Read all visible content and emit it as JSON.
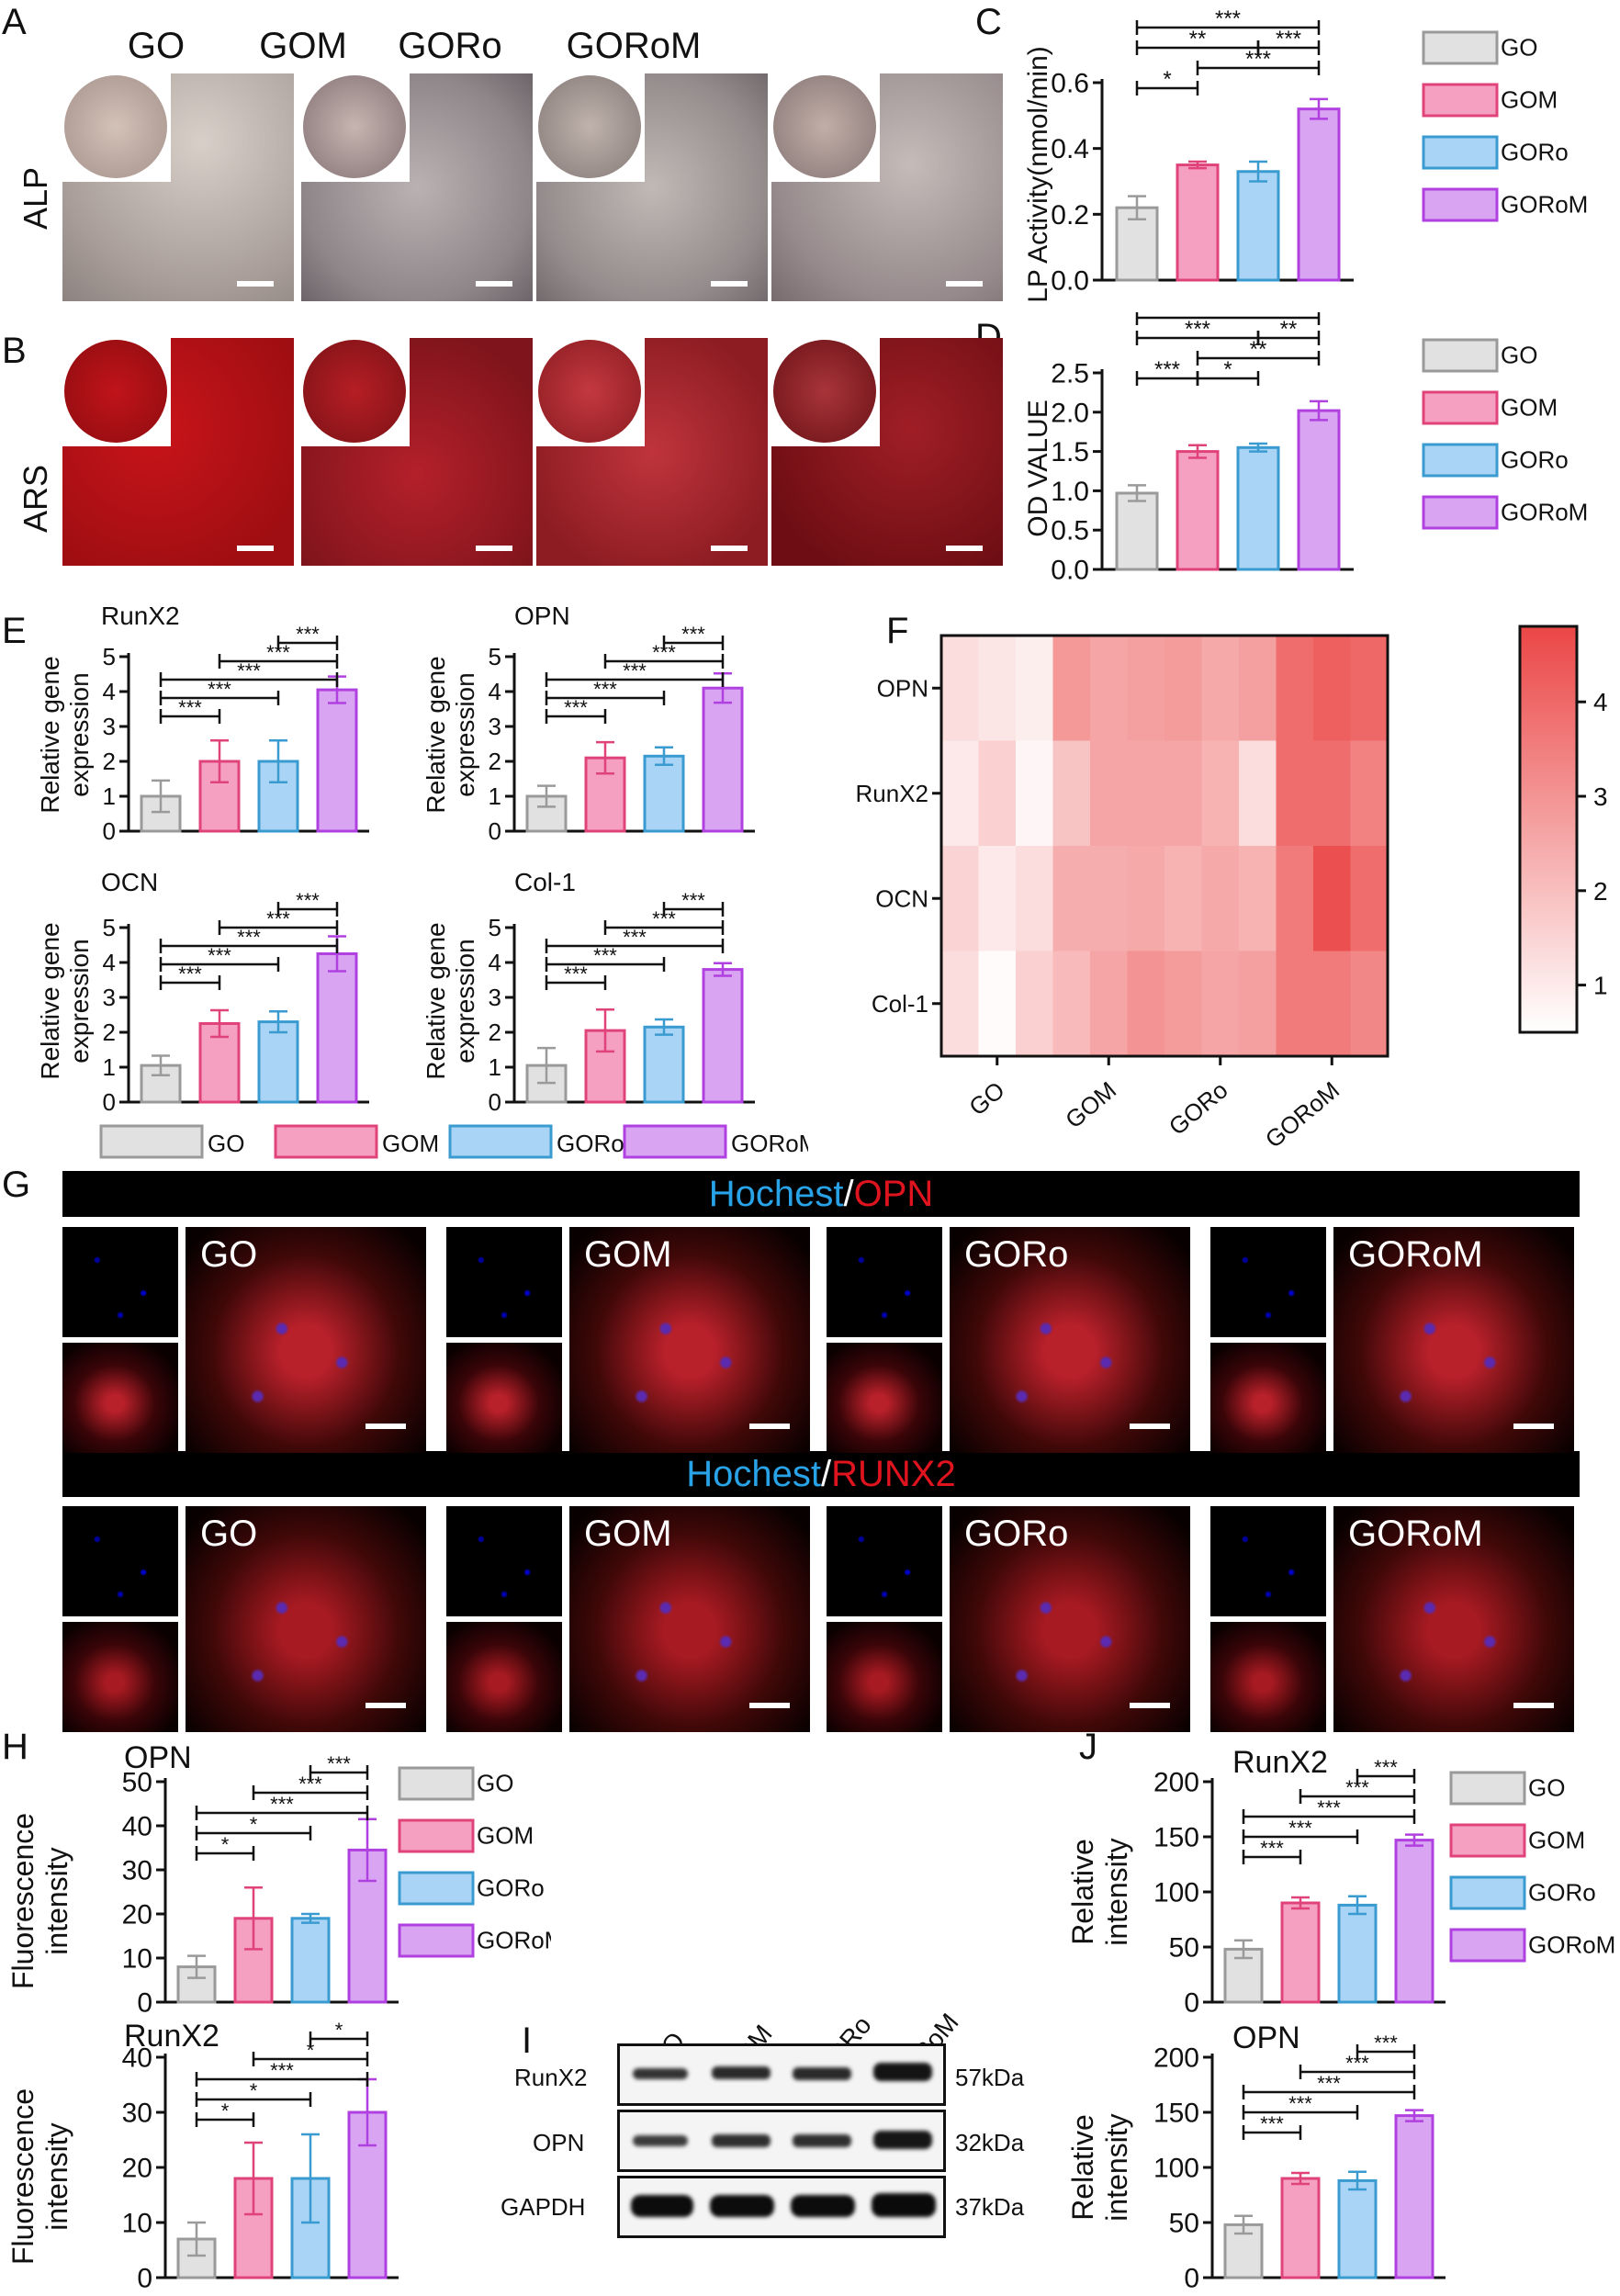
{
  "panel_labels": {
    "A": "A",
    "B": "B",
    "C": "C",
    "D": "D",
    "E": "E",
    "F": "F",
    "G": "G",
    "H": "H",
    "I": "I",
    "J": "J"
  },
  "groups": [
    "GO",
    "GOM",
    "GORo",
    "GORoM"
  ],
  "row_labels": {
    "alp": "ALP",
    "ars": "ARS"
  },
  "colors": {
    "GO": "#e1e1e1",
    "GOM": "#f5a0c0",
    "GORo": "#a9d4f5",
    "GORoM": "#d9a5f2",
    "GO_edge": "#9a9a9a",
    "GOM_edge": "#e0437a",
    "GORo_edge": "#3a9bd1",
    "GORoM_edge": "#b040e0"
  },
  "banners": {
    "opn": {
      "part1": "Hochest",
      "slash": "/",
      "part2": "OPN"
    },
    "runx2": {
      "part1": "Hochest",
      "slash": "/",
      "part2": "RUNX2"
    }
  },
  "western_blot": {
    "lanes": [
      "GO",
      "GOM",
      "GORo",
      "GORoM"
    ],
    "bands": [
      {
        "name": "RunX2",
        "size": "57kDa"
      },
      {
        "name": "OPN",
        "size": "32kDa"
      },
      {
        "name": "GAPDH",
        "size": "37kDa"
      }
    ]
  },
  "chart_data": [
    {
      "id": "C",
      "type": "bar",
      "categories": [
        "GO",
        "GOM",
        "GORo",
        "GORoM"
      ],
      "values": [
        0.22,
        0.35,
        0.33,
        0.52
      ],
      "errors": [
        0.035,
        0.01,
        0.03,
        0.03
      ],
      "title": "",
      "ylabel": "ALP Activity(nmol/min)",
      "ylim": [
        0,
        0.6
      ],
      "yticks": [
        0.0,
        0.2,
        0.4,
        0.6
      ],
      "legend": [
        "GO",
        "GOM",
        "GORo",
        "GORoM"
      ],
      "significance": [
        {
          "from": 0,
          "to": 3,
          "label": "***"
        },
        {
          "from": 0,
          "to": 2,
          "label": "**"
        },
        {
          "from": 2,
          "to": 3,
          "label": "***"
        },
        {
          "from": 0,
          "to": 1,
          "label": "*"
        },
        {
          "from": 1,
          "to": 3,
          "label": "***"
        }
      ]
    },
    {
      "id": "D",
      "type": "bar",
      "categories": [
        "GO",
        "GOM",
        "GORo",
        "GORoM"
      ],
      "values": [
        0.97,
        1.5,
        1.55,
        2.02
      ],
      "errors": [
        0.1,
        0.08,
        0.05,
        0.12
      ],
      "title": "",
      "ylabel": "OD VALUE",
      "ylim": [
        0,
        2.5
      ],
      "yticks": [
        0.0,
        0.5,
        1.0,
        1.5,
        2.0,
        2.5
      ],
      "legend": [
        "GO",
        "GOM",
        "GORo",
        "GORoM"
      ],
      "significance": [
        {
          "from": 0,
          "to": 3,
          "label": "**"
        },
        {
          "from": 0,
          "to": 2,
          "label": "***"
        },
        {
          "from": 2,
          "to": 3,
          "label": "**"
        },
        {
          "from": 0,
          "to": 1,
          "label": "***"
        },
        {
          "from": 1,
          "to": 2,
          "label": "*"
        },
        {
          "from": 1,
          "to": 3,
          "label": "**"
        }
      ]
    },
    {
      "id": "E1",
      "type": "bar",
      "categories": [
        "GO",
        "GOM",
        "GORo",
        "GORoM"
      ],
      "values": [
        1.0,
        2.0,
        2.0,
        4.05
      ],
      "errors": [
        0.45,
        0.6,
        0.6,
        0.38
      ],
      "title": "RunX2",
      "ylabel": "Relative gene expression",
      "ylim": [
        0,
        5
      ],
      "yticks": [
        0,
        1,
        2,
        3,
        4,
        5
      ],
      "significance": [
        {
          "from": 2,
          "to": 3,
          "label": "***"
        },
        {
          "from": 1,
          "to": 3,
          "label": "***"
        },
        {
          "from": 0,
          "to": 3,
          "label": "***"
        },
        {
          "from": 0,
          "to": 2,
          "label": "***"
        },
        {
          "from": 0,
          "to": 1,
          "label": "***"
        }
      ]
    },
    {
      "id": "E2",
      "type": "bar",
      "categories": [
        "GO",
        "GOM",
        "GORo",
        "GORoM"
      ],
      "values": [
        1.0,
        2.1,
        2.15,
        4.1
      ],
      "errors": [
        0.3,
        0.45,
        0.25,
        0.42
      ],
      "title": "OPN",
      "ylabel": "Relative gene expression",
      "ylim": [
        0,
        5
      ],
      "yticks": [
        0,
        1,
        2,
        3,
        4,
        5
      ],
      "significance": [
        {
          "from": 2,
          "to": 3,
          "label": "***"
        },
        {
          "from": 1,
          "to": 3,
          "label": "***"
        },
        {
          "from": 0,
          "to": 3,
          "label": "***"
        },
        {
          "from": 0,
          "to": 2,
          "label": "***"
        },
        {
          "from": 0,
          "to": 1,
          "label": "***"
        }
      ]
    },
    {
      "id": "E3",
      "type": "bar",
      "categories": [
        "GO",
        "GOM",
        "GORo",
        "GORoM"
      ],
      "values": [
        1.05,
        2.25,
        2.3,
        4.25
      ],
      "errors": [
        0.28,
        0.38,
        0.3,
        0.5
      ],
      "title": "OCN",
      "ylabel": "Relative gene expression",
      "ylim": [
        0,
        5
      ],
      "yticks": [
        0,
        1,
        2,
        3,
        4,
        5
      ],
      "significance": [
        {
          "from": 2,
          "to": 3,
          "label": "***"
        },
        {
          "from": 1,
          "to": 3,
          "label": "***"
        },
        {
          "from": 0,
          "to": 3,
          "label": "***"
        },
        {
          "from": 0,
          "to": 2,
          "label": "***"
        },
        {
          "from": 0,
          "to": 1,
          "label": "***"
        }
      ]
    },
    {
      "id": "E4",
      "type": "bar",
      "categories": [
        "GO",
        "GOM",
        "GORo",
        "GORoM"
      ],
      "values": [
        1.05,
        2.05,
        2.15,
        3.8
      ],
      "errors": [
        0.5,
        0.6,
        0.22,
        0.18
      ],
      "title": "Col-1",
      "ylabel": "Relative gene expression",
      "ylim": [
        0,
        5
      ],
      "yticks": [
        0,
        1,
        2,
        3,
        4,
        5
      ],
      "legend": [
        "GO",
        "GOM",
        "GORo",
        "GORoM"
      ],
      "significance": [
        {
          "from": 2,
          "to": 3,
          "label": "***"
        },
        {
          "from": 1,
          "to": 3,
          "label": "***"
        },
        {
          "from": 0,
          "to": 3,
          "label": "***"
        },
        {
          "from": 0,
          "to": 2,
          "label": "***"
        },
        {
          "from": 0,
          "to": 1,
          "label": "***"
        }
      ]
    },
    {
      "id": "F",
      "type": "heatmap",
      "rows": [
        "OPN",
        "RunX2",
        "OCN",
        "Col-1"
      ],
      "columns": [
        "GO",
        "GOM",
        "GORo",
        "GORoM"
      ],
      "values": [
        [
          1.3,
          1.1,
          0.9,
          2.9,
          2.6,
          2.7,
          2.8,
          2.5,
          2.7,
          3.9,
          4.2,
          4.0
        ],
        [
          1.0,
          1.6,
          0.7,
          1.9,
          2.6,
          2.6,
          2.6,
          2.3,
          1.3,
          3.9,
          3.9,
          3.4
        ],
        [
          1.5,
          1.0,
          1.3,
          2.4,
          2.4,
          2.5,
          2.3,
          2.5,
          2.3,
          3.6,
          4.6,
          3.9
        ],
        [
          1.3,
          0.6,
          1.6,
          2.1,
          2.6,
          3.0,
          2.8,
          2.6,
          2.7,
          3.6,
          3.6,
          3.3
        ]
      ],
      "colorbar_ticks": [
        1,
        2,
        3,
        4
      ],
      "vmin": 0.5,
      "vmax": 4.8
    },
    {
      "id": "H1",
      "type": "bar",
      "categories": [
        "GO",
        "GOM",
        "GORo",
        "GORoM"
      ],
      "values": [
        8,
        19,
        19,
        34.5
      ],
      "errors": [
        2.5,
        7,
        1,
        7
      ],
      "title": "OPN",
      "ylabel": "Fluorescence intensity",
      "ylim": [
        0,
        50
      ],
      "yticks": [
        0,
        10,
        20,
        30,
        40,
        50
      ],
      "legend": [
        "GO",
        "GOM",
        "GORo",
        "GORoM"
      ],
      "significance": [
        {
          "from": 2,
          "to": 3,
          "label": "***"
        },
        {
          "from": 1,
          "to": 3,
          "label": "***"
        },
        {
          "from": 0,
          "to": 3,
          "label": "***"
        },
        {
          "from": 0,
          "to": 2,
          "label": "*"
        },
        {
          "from": 0,
          "to": 1,
          "label": "*"
        }
      ]
    },
    {
      "id": "H2",
      "type": "bar",
      "categories": [
        "GO",
        "GOM",
        "GORo",
        "GORoM"
      ],
      "values": [
        7,
        18,
        18,
        30
      ],
      "errors": [
        3,
        6.5,
        8,
        6
      ],
      "title": "RunX2",
      "ylabel": "Fluorescence intensity",
      "ylim": [
        0,
        40
      ],
      "yticks": [
        0,
        10,
        20,
        30,
        40
      ],
      "significance": [
        {
          "from": 2,
          "to": 3,
          "label": "*"
        },
        {
          "from": 1,
          "to": 3,
          "label": "*"
        },
        {
          "from": 0,
          "to": 3,
          "label": "***"
        },
        {
          "from": 0,
          "to": 2,
          "label": "*"
        },
        {
          "from": 0,
          "to": 1,
          "label": "*"
        }
      ]
    },
    {
      "id": "J1",
      "type": "bar",
      "categories": [
        "GO",
        "GOM",
        "GORo",
        "GORoM"
      ],
      "values": [
        48,
        90,
        88,
        147
      ],
      "errors": [
        8,
        5,
        8,
        5
      ],
      "title": "RunX2",
      "ylabel": "Relative intensity",
      "ylim": [
        0,
        200
      ],
      "yticks": [
        0,
        50,
        100,
        150,
        200
      ],
      "legend": [
        "GO",
        "GOM",
        "GORo",
        "GORoM"
      ],
      "significance": [
        {
          "from": 2,
          "to": 3,
          "label": "***"
        },
        {
          "from": 1,
          "to": 3,
          "label": "***"
        },
        {
          "from": 0,
          "to": 3,
          "label": "***"
        },
        {
          "from": 0,
          "to": 2,
          "label": "***"
        },
        {
          "from": 0,
          "to": 1,
          "label": "***"
        }
      ]
    },
    {
      "id": "J2",
      "type": "bar",
      "categories": [
        "GO",
        "GOM",
        "GORo",
        "GORoM"
      ],
      "values": [
        48,
        90,
        88,
        147
      ],
      "errors": [
        8,
        5,
        8,
        5
      ],
      "title": "OPN",
      "ylabel": "Relative intensity",
      "ylim": [
        0,
        200
      ],
      "yticks": [
        0,
        50,
        100,
        150,
        200
      ],
      "significance": [
        {
          "from": 2,
          "to": 3,
          "label": "***"
        },
        {
          "from": 1,
          "to": 3,
          "label": "***"
        },
        {
          "from": 0,
          "to": 3,
          "label": "***"
        },
        {
          "from": 0,
          "to": 2,
          "label": "***"
        },
        {
          "from": 0,
          "to": 1,
          "label": "***"
        }
      ]
    }
  ]
}
